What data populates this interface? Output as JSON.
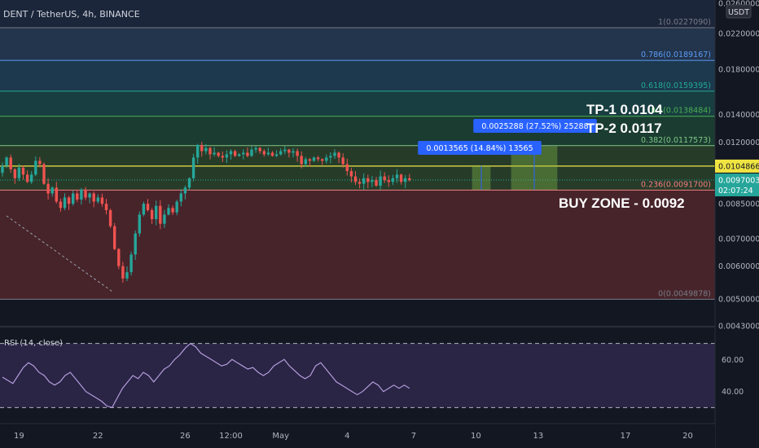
{
  "header": {
    "title": "DENT / TetherUS, 4h, BINANCE"
  },
  "price_axis": {
    "currency": "USDT",
    "ticks": [
      {
        "v": 0.026,
        "t": "0.0260000"
      },
      {
        "v": 0.022,
        "t": "0.0220000"
      },
      {
        "v": 0.018,
        "t": "0.0180000"
      },
      {
        "v": 0.014,
        "t": "0.0140000"
      },
      {
        "v": 0.012,
        "t": "0.0120000"
      },
      {
        "v": 0.0085,
        "t": "0.0085000"
      },
      {
        "v": 0.007,
        "t": "0.0070000"
      },
      {
        "v": 0.006,
        "t": "0.0060000"
      },
      {
        "v": 0.005,
        "t": "0.0050000"
      },
      {
        "v": 0.0043,
        "t": "0.0043000"
      }
    ],
    "current_price": {
      "v": 0.0104866,
      "t": "0.0104866",
      "color": "#f0e442"
    },
    "last_price": {
      "v": 0.0097003,
      "t": "0.0097003",
      "countdown": "02:07:24",
      "color": "#26a69a"
    }
  },
  "fib_levels": [
    {
      "ratio": "1",
      "price": 0.022709,
      "text": "1(0.0227090)",
      "color": "#787b86"
    },
    {
      "ratio": "0.786",
      "price": 0.0189167,
      "text": "0.786(0.0189167)",
      "color": "#5b9cf6"
    },
    {
      "ratio": "0.618",
      "price": 0.0159395,
      "text": "0.618(0.0159395)",
      "color": "#22ab94"
    },
    {
      "ratio": "0.5",
      "price": 0.0138484,
      "text": "0.5(0.0138484)",
      "color": "#4caf50"
    },
    {
      "ratio": "0.382",
      "price": 0.0117573,
      "text": "0.382(0.0117573)",
      "color": "#81c784"
    },
    {
      "ratio": "0.236",
      "price": 0.00917,
      "text": "0.236(0.0091700)",
      "color": "#f77c80"
    },
    {
      "ratio": "0",
      "price": 0.0049878,
      "text": "0(0.0049878)",
      "color": "#787b86"
    }
  ],
  "annotations": {
    "tp1": "TP-1 0.0104",
    "tp2": "TP-2 0.0117",
    "buy_zone": "BUY ZONE - 0.0092",
    "measure1": "0.0013565 (14.84%) 13565",
    "measure2": "0.0025288 (27.52%) 25288"
  },
  "rsi": {
    "label": "RSI (14, close)",
    "ticks": [
      {
        "v": 60,
        "t": "60.00"
      },
      {
        "v": 40,
        "t": "40.00"
      }
    ],
    "upper": 70,
    "lower": 30,
    "color": "#b39ddb",
    "values": [
      49,
      47,
      45,
      50,
      55,
      58,
      56,
      52,
      50,
      46,
      44,
      46,
      50,
      52,
      48,
      44,
      40,
      38,
      36,
      34,
      31,
      30,
      36,
      42,
      46,
      50,
      48,
      52,
      50,
      46,
      50,
      54,
      56,
      60,
      63,
      67,
      70,
      68,
      64,
      62,
      60,
      58,
      56,
      57,
      60,
      58,
      56,
      54,
      55,
      52,
      50,
      52,
      56,
      58,
      60,
      56,
      53,
      50,
      48,
      50,
      56,
      58,
      54,
      50,
      46,
      44,
      42,
      40,
      38,
      40,
      43,
      46,
      44,
      40,
      42,
      44,
      42,
      44,
      42
    ]
  },
  "time_axis": {
    "labels": [
      {
        "i": 4,
        "t": "19"
      },
      {
        "i": 23,
        "t": "22"
      },
      {
        "i": 44,
        "t": "26"
      },
      {
        "i": 55,
        "t": "12:00"
      },
      {
        "i": 67,
        "t": "May"
      },
      {
        "i": 83,
        "t": "4"
      },
      {
        "i": 99,
        "t": "7"
      },
      {
        "i": 114,
        "t": "10"
      },
      {
        "i": 129,
        "t": "13"
      },
      {
        "i": 150,
        "t": "17"
      },
      {
        "i": 165,
        "t": "20"
      }
    ]
  },
  "chart_data": {
    "type": "candlestick",
    "title": "DENT / TetherUS, 4h, BINANCE",
    "y_scale": "log",
    "ylim": [
      0.0043,
      0.0265
    ],
    "up_color": "#26a69a",
    "down_color": "#ef5350",
    "closes": [
      0.0105,
      0.011,
      0.0103,
      0.0098,
      0.0104,
      0.01,
      0.0096,
      0.01,
      0.0108,
      0.0106,
      0.0095,
      0.009,
      0.0093,
      0.0086,
      0.0083,
      0.0088,
      0.0085,
      0.009,
      0.0087,
      0.0092,
      0.0088,
      0.009,
      0.0086,
      0.0088,
      0.0085,
      0.0082,
      0.0075,
      0.0066,
      0.006,
      0.0056,
      0.0058,
      0.0064,
      0.0072,
      0.008,
      0.0085,
      0.0082,
      0.0078,
      0.0084,
      0.0076,
      0.008,
      0.0083,
      0.0081,
      0.0086,
      0.009,
      0.0093,
      0.0098,
      0.011,
      0.0118,
      0.0114,
      0.0116,
      0.0112,
      0.0113,
      0.0111,
      0.011,
      0.0112,
      0.0114,
      0.0111,
      0.0112,
      0.0113,
      0.0111,
      0.0115,
      0.0116,
      0.0114,
      0.0112,
      0.0113,
      0.0111,
      0.0112,
      0.0114,
      0.0115,
      0.0113,
      0.0114,
      0.0111,
      0.0106,
      0.0109,
      0.0108,
      0.011,
      0.0109,
      0.0108,
      0.011,
      0.0111,
      0.0113,
      0.011,
      0.0106,
      0.0102,
      0.0099,
      0.0096,
      0.0095,
      0.0098,
      0.0096,
      0.0097,
      0.0094,
      0.0099,
      0.0097,
      0.0096,
      0.0098,
      0.01,
      0.0096,
      0.0098,
      0.0097
    ],
    "fib_retracement": [
      {
        "level": 1,
        "price": 0.022709
      },
      {
        "level": 0.786,
        "price": 0.0189167
      },
      {
        "level": 0.618,
        "price": 0.0159395
      },
      {
        "level": 0.5,
        "price": 0.0138484
      },
      {
        "level": 0.382,
        "price": 0.0117573
      },
      {
        "level": 0.236,
        "price": 0.00917
      },
      {
        "level": 0,
        "price": 0.0049878
      }
    ],
    "targets": [
      {
        "name": "TP-1",
        "price": 0.0104
      },
      {
        "name": "TP-2",
        "price": 0.0117
      }
    ],
    "buy_zone": 0.0092,
    "rsi_period": 14,
    "rsi_levels": [
      30,
      70
    ]
  }
}
